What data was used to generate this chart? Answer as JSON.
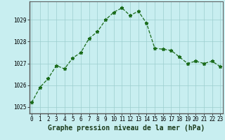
{
  "x": [
    0,
    1,
    2,
    3,
    4,
    5,
    6,
    7,
    8,
    9,
    10,
    11,
    12,
    13,
    14,
    15,
    16,
    17,
    18,
    19,
    20,
    21,
    22,
    23
  ],
  "y": [
    1025.2,
    1025.9,
    1026.3,
    1026.9,
    1026.75,
    1027.25,
    1027.5,
    1028.15,
    1028.45,
    1029.0,
    1029.35,
    1029.55,
    1029.2,
    1029.4,
    1028.85,
    1027.7,
    1027.65,
    1027.6,
    1027.3,
    1027.0,
    1027.1,
    1027.0,
    1027.1,
    1026.85
  ],
  "line_color": "#1a6b1a",
  "marker": "*",
  "marker_size": 3.5,
  "bg_color": "#c8eef0",
  "grid_color": "#9ccece",
  "xlabel": "Graphe pression niveau de la mer (hPa)",
  "xlabel_fontsize": 7,
  "tick_fontsize": 5.5,
  "yticks": [
    1025,
    1026,
    1027,
    1028,
    1029
  ],
  "xticks": [
    0,
    1,
    2,
    3,
    4,
    5,
    6,
    7,
    8,
    9,
    10,
    11,
    12,
    13,
    14,
    15,
    16,
    17,
    18,
    19,
    20,
    21,
    22,
    23
  ],
  "ylim": [
    1024.7,
    1029.85
  ],
  "xlim": [
    -0.3,
    23.3
  ]
}
